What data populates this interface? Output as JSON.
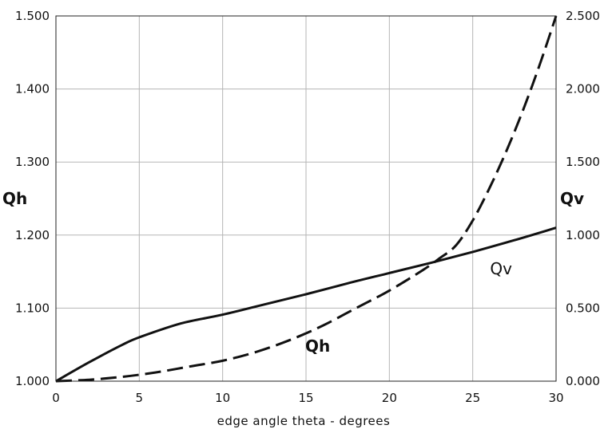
{
  "chart_data": {
    "type": "line",
    "xlabel": "edge angle theta - degrees",
    "ylabel_left": "Qh",
    "ylabel_right": "Qv",
    "xlim": [
      0,
      30
    ],
    "ylim_left": [
      1.0,
      1.5
    ],
    "ylim_right": [
      0.0,
      2.5
    ],
    "x_ticks": [
      0,
      5,
      10,
      15,
      20,
      25,
      30
    ],
    "x_tick_labels": [
      "0",
      "5",
      "10",
      "15",
      "20",
      "25",
      "30"
    ],
    "y_left_ticks": [
      1.0,
      1.1,
      1.2,
      1.3,
      1.4,
      1.5
    ],
    "y_left_tick_labels": [
      "1.000",
      "1.100",
      "1.200",
      "1.300",
      "1.400",
      "1.500"
    ],
    "y_right_ticks": [
      0.0,
      0.5,
      1.0,
      1.5,
      2.0,
      2.5
    ],
    "y_right_tick_labels": [
      "0.000",
      "0.500",
      "1.000",
      "1.500",
      "2.000",
      "2.500"
    ],
    "grid": true,
    "series": [
      {
        "name": "Qv",
        "axis": "left",
        "style": "solid",
        "x": [
          0,
          2,
          4,
          5,
          7.5,
          10,
          12.5,
          15,
          17.5,
          20,
          22.5,
          25,
          27.5,
          30
        ],
        "y": [
          1.0,
          1.026,
          1.05,
          1.06,
          1.079,
          1.091,
          1.105,
          1.119,
          1.134,
          1.148,
          1.162,
          1.177,
          1.193,
          1.21
        ]
      },
      {
        "name": "Qh",
        "axis": "right",
        "style": "dashed",
        "x": [
          0,
          2,
          4,
          6,
          8,
          10,
          12,
          14,
          16,
          18,
          20,
          22,
          23,
          24,
          25,
          26,
          27,
          28,
          29,
          30
        ],
        "y": [
          0.0,
          0.01,
          0.03,
          0.06,
          0.1,
          0.14,
          0.2,
          0.28,
          0.38,
          0.5,
          0.62,
          0.76,
          0.84,
          0.93,
          1.1,
          1.32,
          1.57,
          1.85,
          2.16,
          2.5
        ]
      }
    ],
    "annotations": [
      {
        "text": "Qh",
        "x": 15.7,
        "y": 0.24,
        "axis": "right",
        "style": "bold"
      },
      {
        "text": "Qv",
        "x": 26.7,
        "y": 0.77,
        "axis": "right",
        "style": "normal"
      }
    ]
  },
  "colors": {
    "line": "#111111",
    "grid": "#b5b5b5",
    "frame": "#222222"
  }
}
